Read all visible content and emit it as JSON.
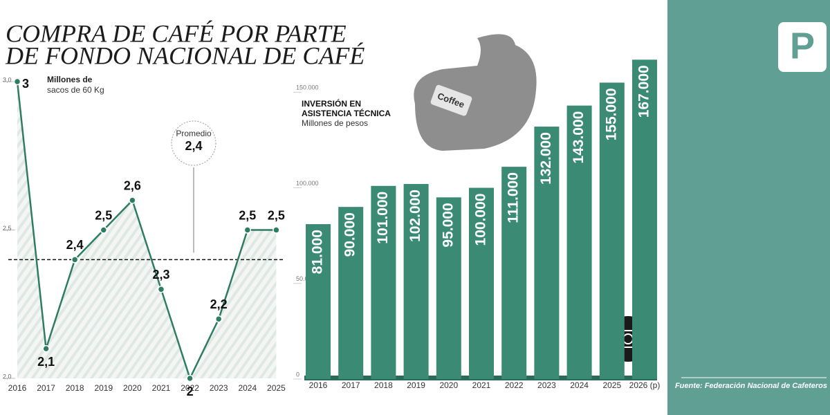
{
  "title": [
    "COMPRA DE CAFÉ POR PARTE",
    "DE FONDO NACIONAL DE CAFÉ"
  ],
  "source": "Fuente: Federación Nacional de Cafeteros",
  "logo": "P",
  "illustration_label": "Coffee",
  "chart_data": [
    {
      "type": "line",
      "y_label": [
        "Millones de",
        "sacos de 60 Kg"
      ],
      "categories": [
        "2016",
        "2017",
        "2018",
        "2019",
        "2020",
        "2021",
        "2022",
        "2023",
        "2024",
        "2025"
      ],
      "values": [
        3,
        2.1,
        2.4,
        2.5,
        2.6,
        2.3,
        2,
        2.2,
        2.5,
        2.5
      ],
      "value_labels": [
        "3",
        "2,1",
        "2,4",
        "2,5",
        "2,6",
        "2,3",
        "2",
        "2,2",
        "2,5",
        "2,5"
      ],
      "color": "#2e7d62",
      "ylim": [
        2,
        3
      ],
      "yticks": [
        {
          "value": 2,
          "label": "2,0"
        },
        {
          "value": 2.5,
          "label": "2,5"
        },
        {
          "value": 3,
          "label": "3,0"
        }
      ],
      "average": {
        "label": "Promedio",
        "value": 2.4,
        "value_label": "2,4"
      }
    },
    {
      "type": "bar",
      "title": [
        "INVERSIÓN EN",
        "ASISTENCIA TÉCNICA"
      ],
      "subtitle": "Millones de pesos",
      "categories": [
        "2016",
        "2017",
        "2018",
        "2019",
        "2020",
        "2021",
        "2022",
        "2023",
        "2024",
        "2025",
        "2026 (p)"
      ],
      "values": [
        81000,
        90000,
        101000,
        102000,
        95000,
        100000,
        111000,
        132000,
        143000,
        155000,
        167000
      ],
      "value_labels": [
        "81.000",
        "90.000",
        "101.000",
        "102.000",
        "95.000",
        "100.000",
        "111.000",
        "132.000",
        "143.000",
        "155.000",
        "167.000"
      ],
      "color": "#3a8a74",
      "ylim": [
        0,
        170000
      ],
      "yticks": [
        0,
        {
          "value": 50000,
          "label": "50.000"
        },
        {
          "value": 100000,
          "label": "100.000"
        },
        {
          "value": 150000,
          "label": "150.000"
        }
      ]
    }
  ]
}
